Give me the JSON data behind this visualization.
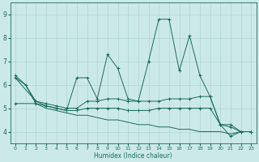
{
  "xlabel": "Humidex (Indice chaleur)",
  "xlim": [
    -0.5,
    23.5
  ],
  "ylim": [
    3.5,
    9.5
  ],
  "yticks": [
    4,
    5,
    6,
    7,
    8,
    9
  ],
  "xticks": [
    0,
    1,
    2,
    3,
    4,
    5,
    6,
    7,
    8,
    9,
    10,
    11,
    12,
    13,
    14,
    15,
    16,
    17,
    18,
    19,
    20,
    21,
    22,
    23
  ],
  "bg_color": "#cce9e9",
  "grid_color": "#b0d4d4",
  "line_color": "#1a6b5a",
  "series1": {
    "x": [
      0,
      1,
      2,
      3,
      4,
      5,
      6,
      7,
      8,
      9,
      10,
      11,
      12,
      13,
      14,
      15,
      16,
      17,
      18,
      19,
      20,
      21,
      22,
      23
    ],
    "y": [
      6.4,
      6.0,
      5.3,
      5.1,
      5.0,
      4.9,
      6.3,
      6.3,
      5.4,
      7.3,
      6.7,
      5.4,
      5.3,
      7.0,
      8.8,
      8.8,
      6.6,
      8.1,
      6.4,
      5.5,
      4.3,
      3.8,
      4.0,
      4.0
    ]
  },
  "series2": {
    "x": [
      0,
      2,
      3,
      4,
      5,
      6,
      7,
      8,
      9,
      10,
      11,
      12,
      13,
      14,
      15,
      16,
      17,
      18,
      19,
      20,
      21,
      22,
      23
    ],
    "y": [
      6.3,
      5.3,
      5.2,
      5.1,
      5.0,
      5.0,
      5.3,
      5.3,
      5.4,
      5.4,
      5.3,
      5.3,
      5.3,
      5.3,
      5.4,
      5.4,
      5.4,
      5.5,
      5.5,
      4.3,
      4.3,
      4.0,
      4.0
    ]
  },
  "series3": {
    "x": [
      0,
      2,
      3,
      4,
      5,
      6,
      7,
      8,
      9,
      10,
      11,
      12,
      13,
      14,
      15,
      16,
      17,
      18,
      19,
      20,
      21,
      22,
      23
    ],
    "y": [
      5.2,
      5.2,
      5.1,
      5.0,
      4.9,
      4.9,
      5.0,
      5.0,
      5.0,
      5.0,
      4.9,
      4.9,
      4.9,
      5.0,
      5.0,
      5.0,
      5.0,
      5.0,
      5.0,
      4.3,
      4.2,
      4.0,
      4.0
    ]
  },
  "series4": {
    "x": [
      0,
      1,
      2,
      3,
      4,
      5,
      6,
      7,
      8,
      9,
      10,
      11,
      12,
      13,
      14,
      15,
      16,
      17,
      18,
      19,
      20,
      21,
      22,
      23
    ],
    "y": [
      6.3,
      6.0,
      5.2,
      5.0,
      4.9,
      4.8,
      4.7,
      4.7,
      4.6,
      4.5,
      4.5,
      4.4,
      4.3,
      4.3,
      4.2,
      4.2,
      4.1,
      4.1,
      4.0,
      4.0,
      4.0,
      3.9,
      4.0,
      4.0
    ]
  }
}
